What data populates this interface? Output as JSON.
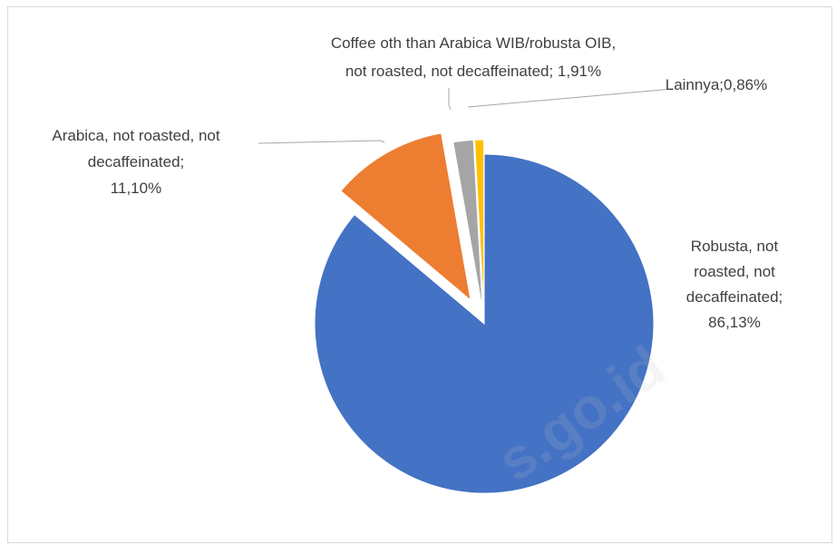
{
  "chart_data": {
    "type": "pie",
    "slices": [
      {
        "label_lines": [
          "Robusta, not",
          "roasted, not",
          "decaffeinated;",
          "86,13%"
        ],
        "value": 86.13,
        "color": "#4472C4"
      },
      {
        "label_lines": [
          "Arabica, not roasted, not",
          "decaffeinated;",
          "11,10%"
        ],
        "value": 11.1,
        "color": "#ED7D31"
      },
      {
        "label_lines": [
          "Coffee oth than Arabica WIB/robusta OIB,",
          "not roasted, not decaffeinated; 1,91%"
        ],
        "value": 1.91,
        "color": "#A5A5A5"
      },
      {
        "label_lines": [
          "Lainnya;0,86%"
        ],
        "value": 0.86,
        "color": "#FFC000"
      }
    ],
    "exploded": true,
    "legend": "none"
  },
  "watermark": "s.go.id"
}
